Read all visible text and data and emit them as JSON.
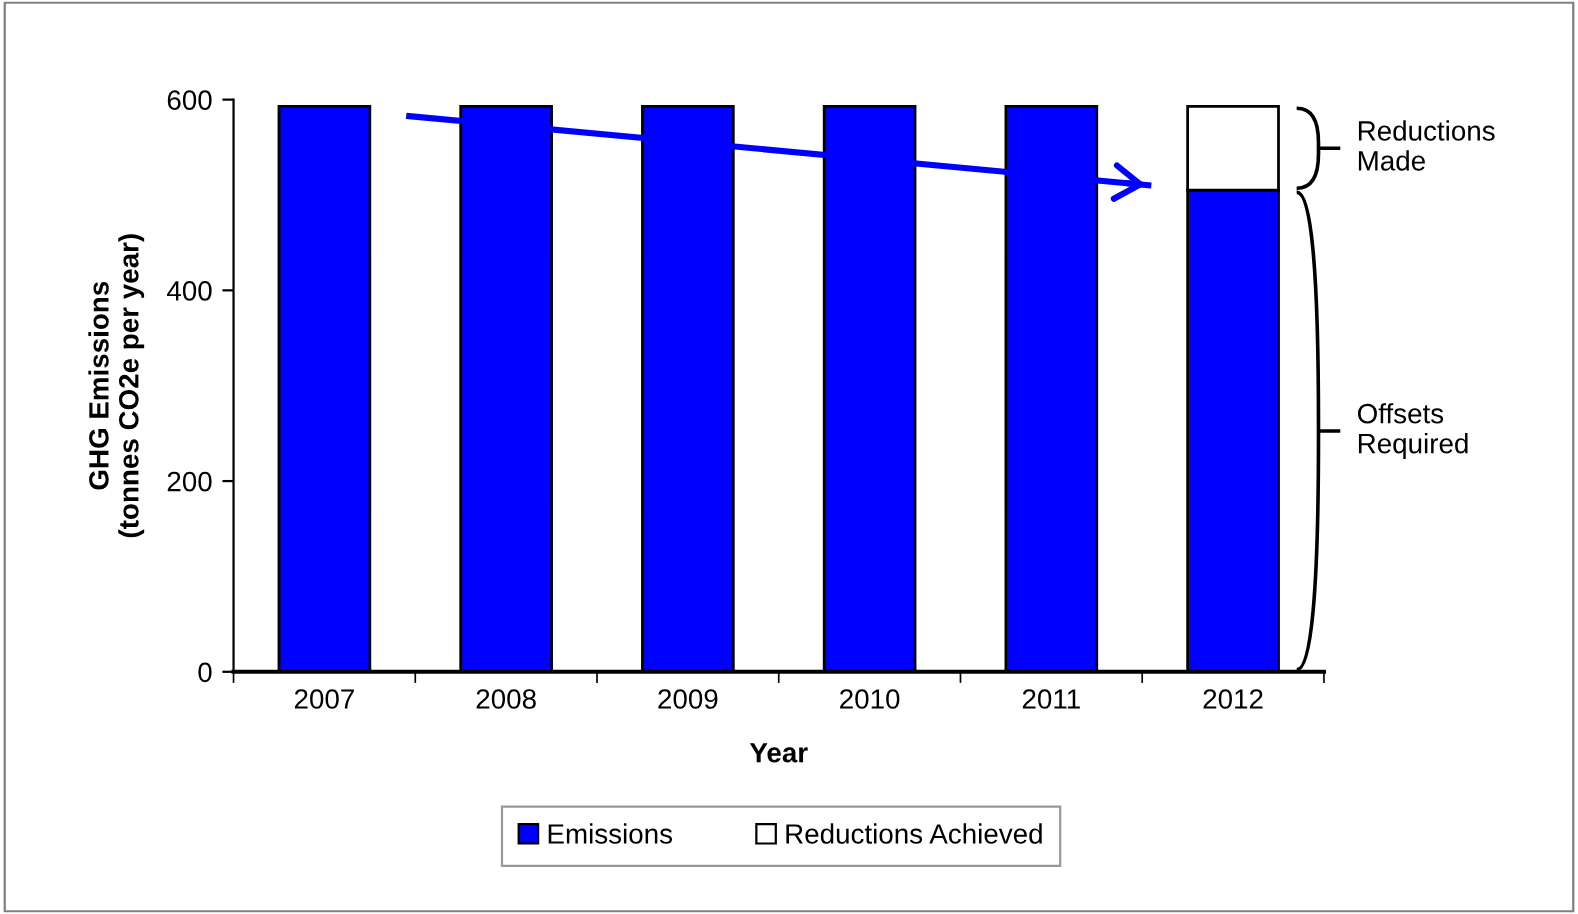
{
  "chart_data": {
    "type": "bar",
    "stacked": true,
    "xlabel": "Year",
    "ylabel": "GHG Emissions\n(tonnes CO2e per year)",
    "x": [
      2007,
      2008,
      2009,
      2010,
      2011,
      2012
    ],
    "series": [
      {
        "name": "Emissions",
        "color": "#0000ff",
        "values": [
          593,
          593,
          593,
          593,
          593,
          505
        ]
      },
      {
        "name": "Reductions Achieved",
        "color": "#ffffff",
        "values": [
          null,
          null,
          null,
          null,
          null,
          88
        ]
      },
      {
        "type": "line",
        "color": "#0000ff",
        "x": [
          2007.45,
          2011.55
        ],
        "values": [
          583,
          510
        ],
        "marker": "none",
        "line_style": "solid"
      }
    ],
    "xlim": [
      2006.5,
      2012.5
    ],
    "xticks": [
      2007,
      2008,
      2009,
      2010,
      2011,
      2012
    ],
    "ylim": [
      0,
      600
    ],
    "yticks": [
      0,
      200,
      400,
      600
    ],
    "grid": false,
    "legend": "bottom",
    "annotations": [
      "Reductions\nMade",
      "Offsets\nRequired"
    ]
  }
}
